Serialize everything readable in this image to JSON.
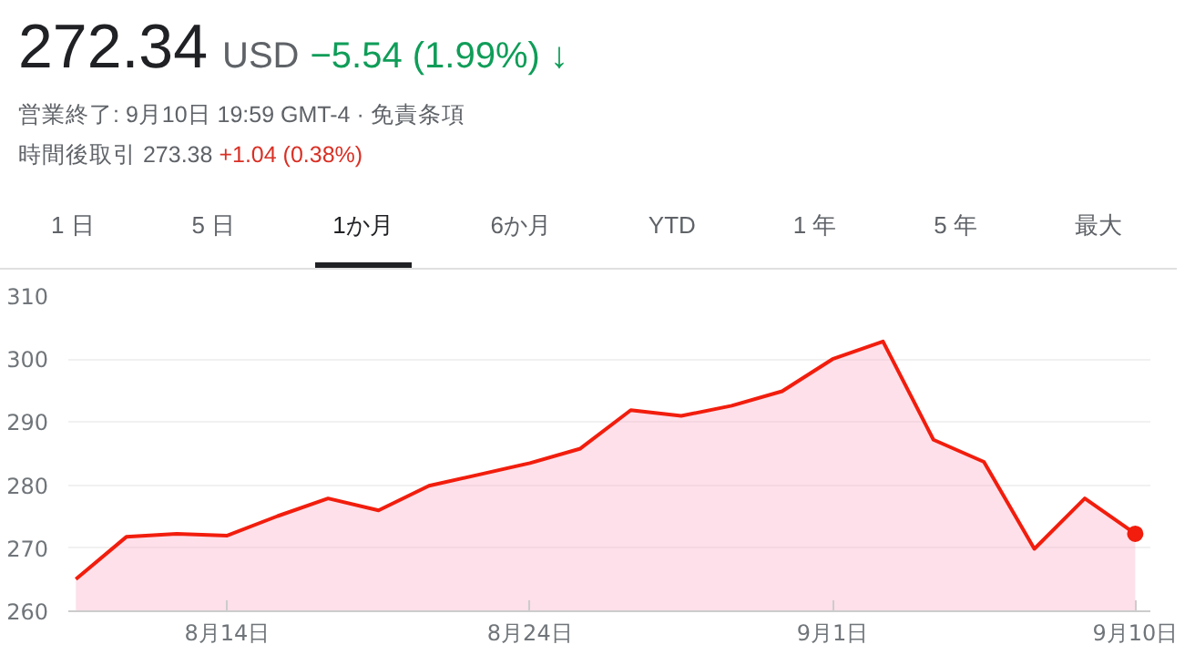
{
  "chart_data": {
    "type": "area",
    "title": "272.34",
    "annotations": [
      "USD",
      "−5.54 (1.99%) ↓",
      "営業終了: 9月10日 19:59 GMT-4 · 免責条項",
      "時間後取引 273.38",
      "+1.04 (0.38%)",
      "1 日",
      "5 日",
      "1か月",
      "6か月",
      "YTD",
      "1 年",
      "5 年",
      "最大"
    ],
    "categories": [
      null,
      null,
      null,
      "8月14日",
      null,
      null,
      null,
      null,
      null,
      "8月24日",
      null,
      null,
      null,
      null,
      null,
      "9月1日",
      null,
      null,
      null,
      null,
      null,
      "9月10日"
    ],
    "series": [
      {
        "color": "#f21d0d",
        "values": [
          265.1,
          271.8,
          272.3,
          272.0,
          275.1,
          277.9,
          276.0,
          279.9,
          281.7,
          283.5,
          285.8,
          291.9,
          291.0,
          292.6,
          294.9,
          300.0,
          302.8,
          287.2,
          283.7,
          269.9,
          277.9,
          272.3
        ]
      }
    ],
    "ylim": [
      260,
      310
    ],
    "yticks": [
      260,
      270,
      280,
      290,
      300,
      310
    ],
    "grid": "y"
  }
}
